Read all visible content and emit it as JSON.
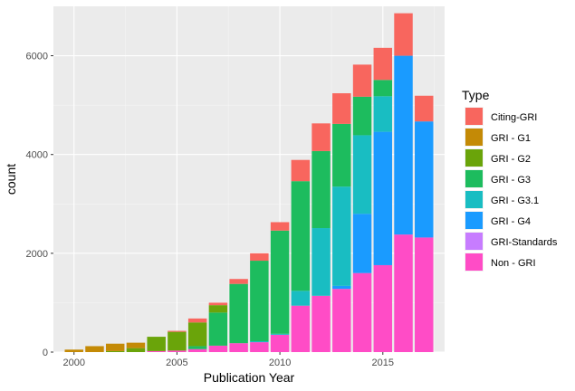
{
  "chart_data": {
    "type": "bar",
    "stacked": true,
    "xlabel": "Publication Year",
    "ylabel": "count",
    "xlim": [
      1999,
      2018
    ],
    "ylim": [
      0,
      7000
    ],
    "x_ticks": [
      2000,
      2005,
      2010,
      2015
    ],
    "y_ticks": [
      0,
      2000,
      4000,
      6000
    ],
    "grid": true,
    "legend_title": "Type",
    "legend_position": "right",
    "years": [
      2000,
      2001,
      2002,
      2003,
      2004,
      2005,
      2006,
      2007,
      2008,
      2009,
      2010,
      2011,
      2012,
      2013,
      2014,
      2015,
      2016,
      2017
    ],
    "series": [
      {
        "name": "Non - GRI",
        "color": "#FF4CC6",
        "values": [
          0,
          0,
          0,
          0,
          20,
          30,
          60,
          130,
          180,
          200,
          350,
          940,
          1140,
          1280,
          1600,
          1760,
          2380,
          2320
        ]
      },
      {
        "name": "GRI-Standards",
        "color": "#C77CFF",
        "values": [
          0,
          0,
          0,
          0,
          0,
          0,
          0,
          0,
          0,
          0,
          0,
          0,
          0,
          0,
          0,
          0,
          0,
          0
        ]
      },
      {
        "name": "GRI - G4",
        "color": "#1A9BFF",
        "values": [
          0,
          0,
          0,
          0,
          0,
          0,
          0,
          0,
          0,
          0,
          0,
          0,
          0,
          60,
          1200,
          2700,
          3620,
          2350
        ]
      },
      {
        "name": "GRI - G3.1",
        "color": "#19BDC2",
        "values": [
          0,
          0,
          0,
          0,
          0,
          0,
          0,
          0,
          0,
          20,
          20,
          300,
          1370,
          2010,
          1590,
          720,
          0,
          0
        ]
      },
      {
        "name": "GRI - G3",
        "color": "#1DBC5E",
        "values": [
          0,
          0,
          0,
          0,
          0,
          0,
          60,
          670,
          1200,
          1630,
          2090,
          2220,
          1560,
          1270,
          780,
          330,
          0,
          0
        ]
      },
      {
        "name": "GRI - G2",
        "color": "#6AA40A",
        "values": [
          0,
          0,
          20,
          80,
          290,
          380,
          480,
          150,
          0,
          0,
          0,
          0,
          0,
          0,
          0,
          0,
          0,
          0
        ]
      },
      {
        "name": "GRI - G1",
        "color": "#C48A06",
        "values": [
          50,
          120,
          150,
          110,
          0,
          0,
          0,
          0,
          0,
          0,
          0,
          0,
          0,
          0,
          0,
          0,
          0,
          0
        ]
      },
      {
        "name": "Citing-GRI",
        "color": "#F8665E",
        "values": [
          0,
          0,
          0,
          0,
          0,
          20,
          80,
          50,
          100,
          150,
          170,
          430,
          560,
          620,
          650,
          650,
          860,
          520
        ]
      }
    ],
    "legend_order": [
      "Citing-GRI",
      "GRI - G1",
      "GRI - G2",
      "GRI - G3",
      "GRI - G3.1",
      "GRI - G4",
      "GRI-Standards",
      "Non - GRI"
    ]
  }
}
